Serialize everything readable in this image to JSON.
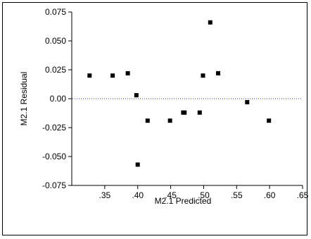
{
  "chart_data": {
    "type": "scatter",
    "title": "",
    "xlabel": "M2.1 Predicted",
    "ylabel": "M2.1 Residual",
    "xlim": [
      0.3,
      0.65
    ],
    "ylim": [
      -0.075,
      0.075
    ],
    "x_ticks": [
      0.35,
      0.4,
      0.45,
      0.5,
      0.55,
      0.6,
      0.65
    ],
    "x_tick_labels": [
      ".35",
      ".40",
      ".45",
      ".50",
      ".55",
      ".60",
      ".65"
    ],
    "y_ticks": [
      0.075,
      0.05,
      0.025,
      0.0,
      -0.025,
      -0.05,
      -0.075
    ],
    "y_tick_labels": [
      "0.075",
      "0.050",
      "0.025",
      "0.00",
      "-0.025",
      "-0.050",
      "-0.075"
    ],
    "reference_line": {
      "y": 0.0,
      "style": "dotted",
      "color": "#3333aa"
    },
    "grid": false,
    "marker_color": "#000000",
    "points": [
      {
        "x": 0.327,
        "y": 0.02
      },
      {
        "x": 0.362,
        "y": 0.02
      },
      {
        "x": 0.385,
        "y": 0.022
      },
      {
        "x": 0.398,
        "y": 0.003
      },
      {
        "x": 0.4,
        "y": -0.057
      },
      {
        "x": 0.415,
        "y": -0.019
      },
      {
        "x": 0.449,
        "y": -0.019
      },
      {
        "x": 0.469,
        "y": -0.012
      },
      {
        "x": 0.471,
        "y": -0.012
      },
      {
        "x": 0.494,
        "y": -0.012
      },
      {
        "x": 0.499,
        "y": 0.02
      },
      {
        "x": 0.51,
        "y": 0.066
      },
      {
        "x": 0.522,
        "y": 0.022
      },
      {
        "x": 0.566,
        "y": -0.003
      },
      {
        "x": 0.599,
        "y": -0.019
      }
    ]
  }
}
